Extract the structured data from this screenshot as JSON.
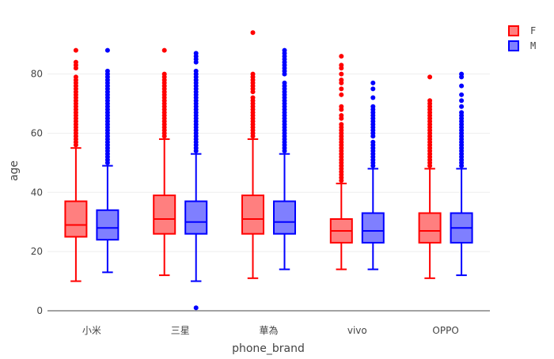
{
  "chart_data": {
    "type": "box",
    "title": "",
    "xlabel": "phone_brand",
    "ylabel": "age",
    "categories": [
      "小米",
      "三星",
      "華為",
      "vivo",
      "OPPO"
    ],
    "ylim": [
      0,
      97
    ],
    "yticks": [
      0,
      20,
      40,
      60,
      80
    ],
    "grid": true,
    "legend_position": "top-right",
    "series": [
      {
        "name": "F",
        "color": "#ff0000",
        "fill": "#ff7f7f",
        "boxes": [
          {
            "min": 10,
            "q1": 25,
            "median": 29,
            "q3": 37,
            "max": 55,
            "outliers": [
              56,
              57,
              58,
              59,
              60,
              61,
              62,
              63,
              64,
              65,
              66,
              67,
              68,
              69,
              70,
              71,
              72,
              73,
              74,
              75,
              76,
              77,
              78,
              79,
              82,
              83,
              84,
              88
            ]
          },
          {
            "min": 12,
            "q1": 26,
            "median": 31,
            "q3": 39,
            "max": 58,
            "outliers": [
              59,
              60,
              61,
              62,
              63,
              64,
              65,
              66,
              67,
              68,
              69,
              70,
              71,
              72,
              73,
              74,
              75,
              76,
              77,
              78,
              79,
              80,
              88
            ]
          },
          {
            "min": 11,
            "q1": 26,
            "median": 31,
            "q3": 39,
            "max": 58,
            "outliers": [
              59,
              60,
              61,
              62,
              63,
              64,
              65,
              66,
              67,
              68,
              69,
              70,
              71,
              72,
              74,
              75,
              76,
              77,
              78,
              79,
              80,
              94
            ]
          },
          {
            "min": 14,
            "q1": 23,
            "median": 27,
            "q3": 31,
            "max": 43,
            "outliers": [
              44,
              45,
              46,
              47,
              48,
              49,
              50,
              51,
              52,
              53,
              54,
              55,
              56,
              57,
              58,
              59,
              60,
              61,
              62,
              63,
              65,
              66,
              68,
              69,
              73,
              75,
              77,
              78,
              80,
              82,
              83,
              86
            ]
          },
          {
            "min": 11,
            "q1": 23,
            "median": 27,
            "q3": 33,
            "max": 48,
            "outliers": [
              49,
              50,
              51,
              52,
              53,
              54,
              55,
              56,
              57,
              58,
              59,
              60,
              61,
              62,
              63,
              64,
              65,
              66,
              67,
              68,
              69,
              70,
              71,
              79
            ]
          }
        ]
      },
      {
        "name": "M",
        "color": "#0000ff",
        "fill": "#7f7fff",
        "boxes": [
          {
            "min": 13,
            "q1": 24,
            "median": 28,
            "q3": 34,
            "max": 49,
            "outliers": [
              50,
              51,
              52,
              53,
              54,
              55,
              56,
              57,
              58,
              59,
              60,
              61,
              62,
              63,
              64,
              65,
              66,
              67,
              68,
              69,
              70,
              71,
              72,
              73,
              74,
              75,
              76,
              77,
              78,
              79,
              80,
              81,
              88
            ]
          },
          {
            "min": 10,
            "q1": 26,
            "median": 30,
            "q3": 37,
            "max": 53,
            "outliers": [
              1,
              54,
              55,
              56,
              57,
              58,
              59,
              60,
              61,
              62,
              63,
              64,
              65,
              66,
              67,
              68,
              69,
              70,
              71,
              72,
              73,
              74,
              75,
              76,
              77,
              78,
              79,
              80,
              81,
              84,
              85,
              86,
              87
            ]
          },
          {
            "min": 14,
            "q1": 26,
            "median": 30,
            "q3": 37,
            "max": 53,
            "outliers": [
              54,
              55,
              56,
              57,
              58,
              59,
              60,
              61,
              62,
              63,
              64,
              65,
              66,
              67,
              68,
              69,
              70,
              71,
              72,
              73,
              74,
              75,
              76,
              77,
              80,
              81,
              82,
              83,
              84,
              85,
              86,
              87,
              88
            ]
          },
          {
            "min": 14,
            "q1": 23,
            "median": 27,
            "q3": 33,
            "max": 48,
            "outliers": [
              49,
              50,
              51,
              52,
              53,
              54,
              55,
              56,
              57,
              59,
              60,
              61,
              62,
              63,
              64,
              65,
              66,
              67,
              68,
              69,
              72,
              75,
              77
            ]
          },
          {
            "min": 12,
            "q1": 23,
            "median": 28,
            "q3": 33,
            "max": 48,
            "outliers": [
              49,
              50,
              51,
              52,
              53,
              54,
              55,
              56,
              57,
              58,
              59,
              60,
              61,
              62,
              63,
              64,
              65,
              66,
              67,
              69,
              71,
              73,
              76,
              79,
              80
            ]
          }
        ]
      }
    ]
  }
}
